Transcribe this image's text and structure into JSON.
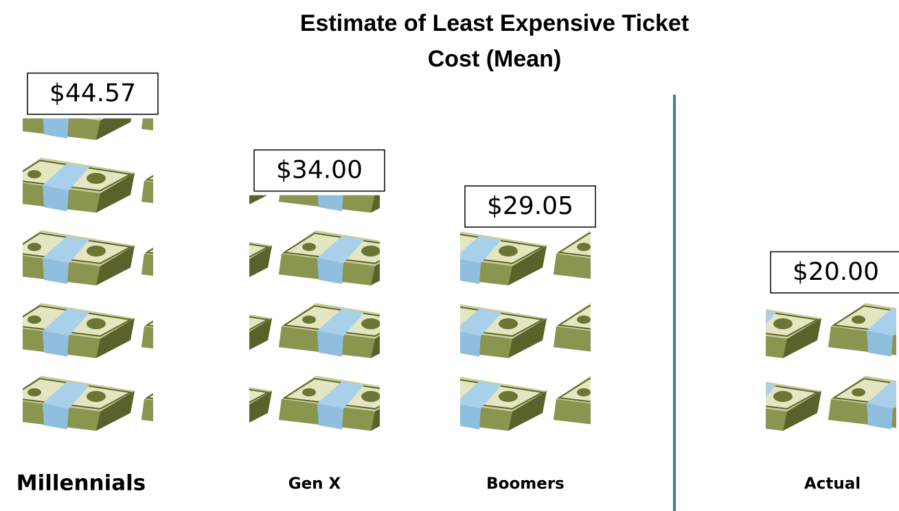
{
  "chart_data": {
    "type": "pictograph",
    "title": "Estimate of Least Expensive Ticket Cost (Mean)",
    "categories": [
      "Millennials",
      "Gen X",
      "Boomers",
      "Actual"
    ],
    "values": [
      44.57,
      34.0,
      29.05,
      20.0
    ],
    "value_labels": [
      "$44.57",
      "$34.00",
      "$29.05",
      "$20.00"
    ],
    "color": "#7d8a4a"
  }
}
